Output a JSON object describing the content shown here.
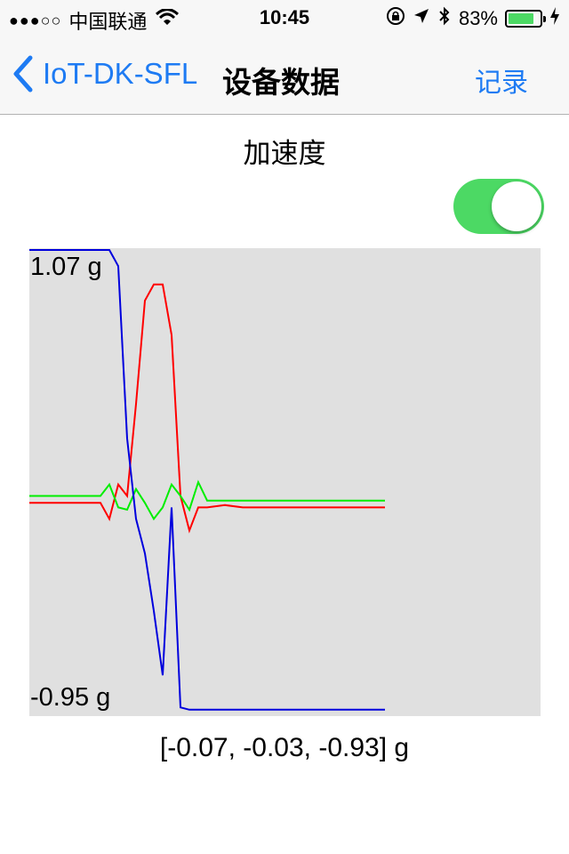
{
  "status_bar": {
    "signal_dots": "●●●○○",
    "carrier": "中国联通",
    "time": "10:45",
    "battery_percent": "83%",
    "battery_level": 0.83
  },
  "nav": {
    "back_label": "IoT-DK-SFL",
    "title": "设备数据",
    "record_label": "记录"
  },
  "section": {
    "title": "加速度",
    "toggle_on": true
  },
  "chart": {
    "top_label": "1.07 g",
    "bottom_label": "-0.95 g",
    "readout": "[-0.07, -0.03, -0.93] g"
  },
  "chart_data": {
    "type": "line",
    "ylim": [
      -0.95,
      1.07
    ],
    "x": [
      0,
      4,
      8,
      12,
      16,
      18,
      20,
      22,
      24,
      26,
      28,
      30,
      32,
      34,
      36,
      38,
      40,
      44,
      48,
      52,
      56,
      60,
      64,
      70,
      80
    ],
    "series": [
      {
        "color": "#ff0000",
        "values": [
          -0.03,
          -0.03,
          -0.03,
          -0.03,
          -0.03,
          -0.1,
          0.05,
          0.0,
          0.4,
          0.85,
          0.92,
          0.92,
          0.7,
          0.0,
          -0.15,
          -0.05,
          -0.05,
          -0.04,
          -0.05,
          -0.05,
          -0.05,
          -0.05,
          -0.05,
          -0.05,
          -0.05
        ]
      },
      {
        "color": "#00ee00",
        "values": [
          0.0,
          0.0,
          0.0,
          0.0,
          0.0,
          0.05,
          -0.05,
          -0.06,
          0.03,
          -0.03,
          -0.1,
          -0.05,
          0.05,
          0.0,
          -0.06,
          0.06,
          -0.02,
          -0.02,
          -0.02,
          -0.02,
          -0.02,
          -0.02,
          -0.02,
          -0.02,
          -0.02
        ]
      },
      {
        "color": "#0000dd",
        "values": [
          1.07,
          1.07,
          1.07,
          1.07,
          1.07,
          1.07,
          1.0,
          0.25,
          -0.1,
          -0.25,
          -0.5,
          -0.78,
          -0.05,
          -0.92,
          -0.93,
          -0.93,
          -0.93,
          -0.93,
          -0.93,
          -0.93,
          -0.93,
          -0.93,
          -0.93,
          -0.93,
          -0.93
        ]
      }
    ]
  }
}
